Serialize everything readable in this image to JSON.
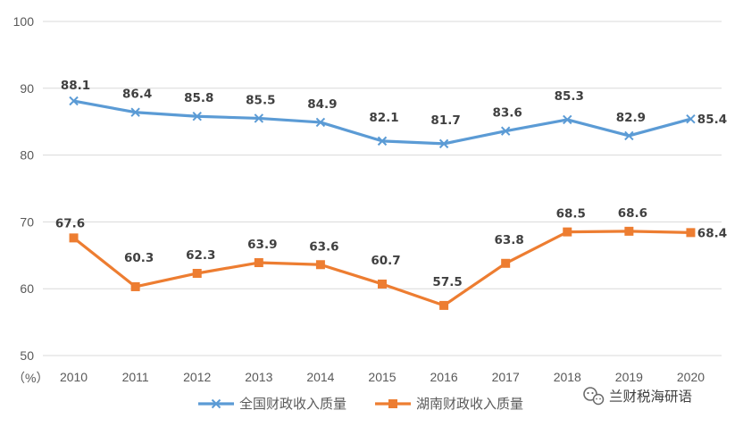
{
  "chart_data": {
    "type": "line",
    "categories": [
      "2010",
      "2011",
      "2012",
      "2013",
      "2014",
      "2015",
      "2016",
      "2017",
      "2018",
      "2019",
      "2020"
    ],
    "series": [
      {
        "name": "全国财政收入质量",
        "values": [
          88.1,
          86.4,
          85.8,
          85.5,
          84.9,
          82.1,
          81.7,
          83.6,
          85.3,
          82.9,
          85.4
        ],
        "labels": [
          "88.1",
          "86.4",
          "85.8",
          "85.5",
          "84.9",
          "82.1",
          "81.7",
          "83.6",
          "85.3",
          "82.9",
          "85.4"
        ],
        "color": "#5B9BD5",
        "marker": "x"
      },
      {
        "name": "湖南财政收入质量",
        "values": [
          67.6,
          60.3,
          62.3,
          63.9,
          63.6,
          60.7,
          57.5,
          63.8,
          68.5,
          68.6,
          68.4
        ],
        "labels": [
          "67.6",
          "60.3",
          "62.3",
          "63.9",
          "63.6",
          "60.7",
          "57.5",
          "63.8",
          "68.5",
          "68.6",
          "68.4"
        ],
        "color": "#ED7D31",
        "marker": "square"
      }
    ],
    "ylim": [
      50,
      100
    ],
    "yticks": [
      "50",
      "60",
      "70",
      "80",
      "90",
      "100"
    ],
    "yunit": "（%）",
    "grid": true,
    "legend": "bottom"
  },
  "watermark": {
    "icon": "wechat-icon",
    "text": "兰财税海研语"
  }
}
